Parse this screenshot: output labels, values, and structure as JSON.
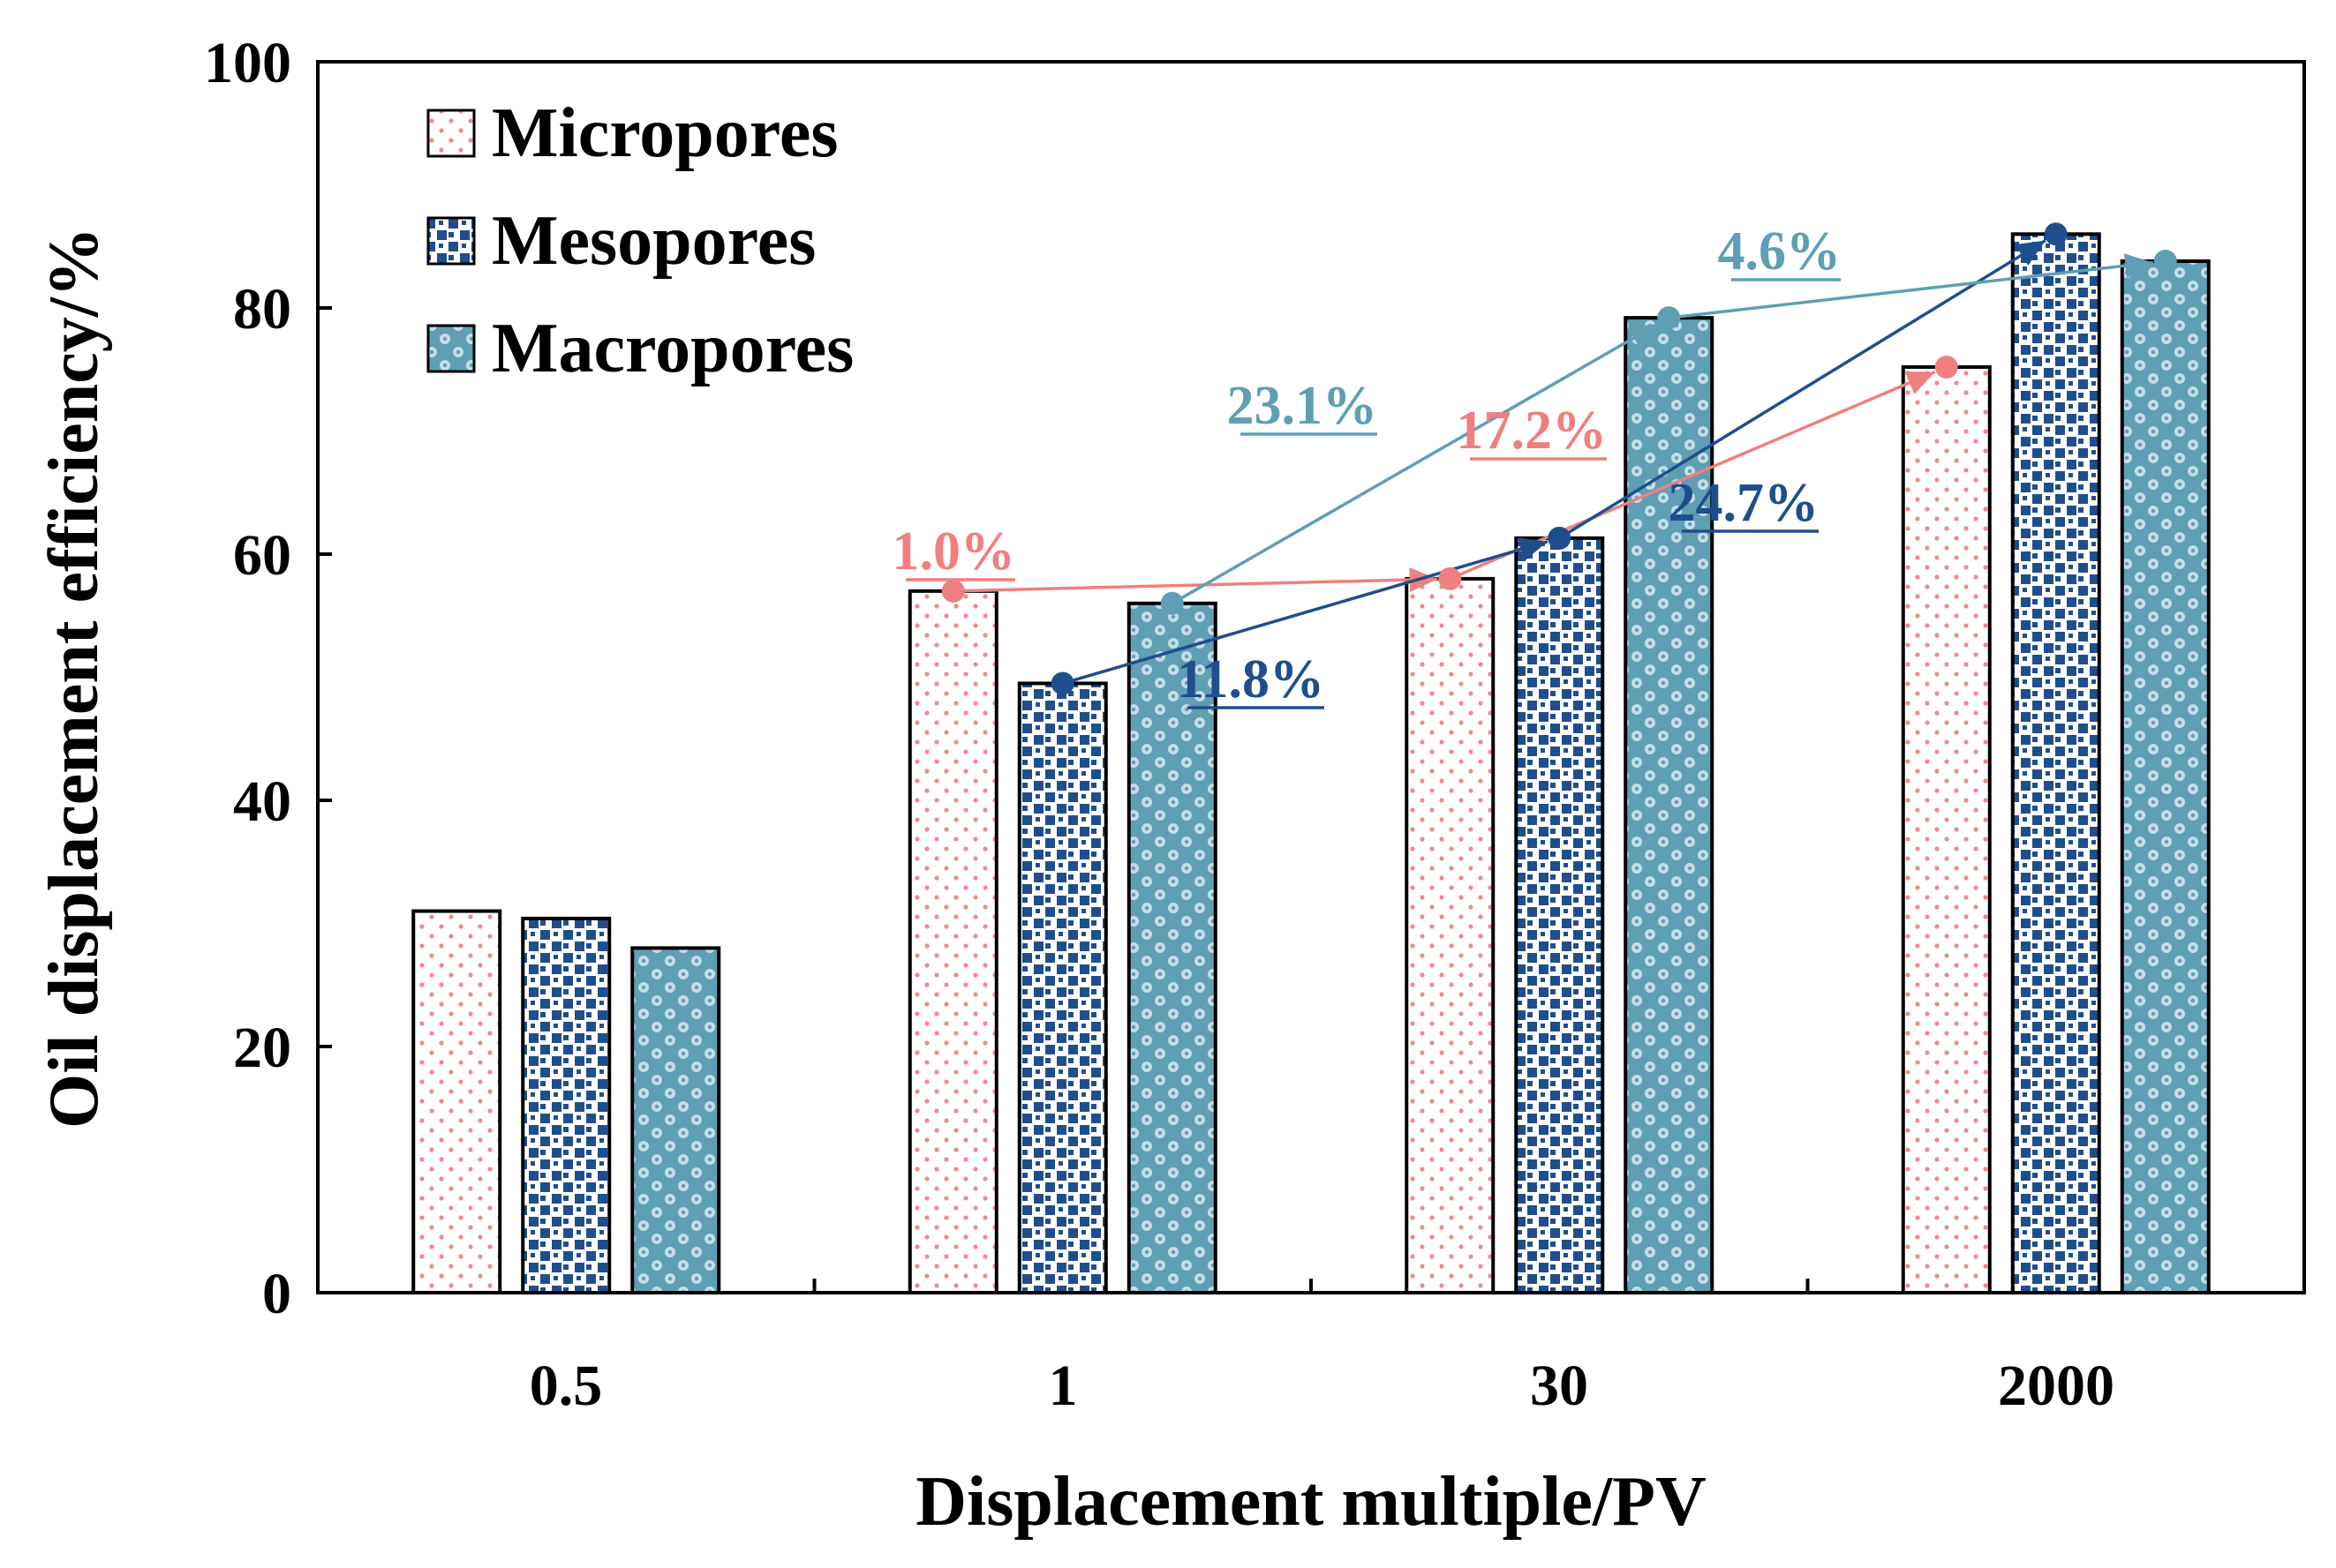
{
  "chart_data": {
    "type": "bar",
    "title": "",
    "xlabel": "Displacement multiple/PV",
    "ylabel": "Oil displacement efficiency/%",
    "ylim": [
      0,
      100
    ],
    "yticks": [
      "0",
      "20",
      "40",
      "60",
      "80",
      "100"
    ],
    "categories": [
      "0.5",
      "1",
      "30",
      "2000"
    ],
    "legend_position": "top-left",
    "series": [
      {
        "name": "Micropores",
        "color": "#f07f7f",
        "values": [
          31.0,
          57.0,
          58.0,
          75.2
        ]
      },
      {
        "name": "Mesopores",
        "color": "#1f4e8c",
        "values": [
          30.4,
          49.5,
          61.3,
          86.0
        ]
      },
      {
        "name": "Macropores",
        "color": "#5e9fb3",
        "values": [
          28.0,
          56.0,
          79.2,
          83.8
        ]
      }
    ],
    "annotations": [
      {
        "series": 0,
        "from": 1,
        "to": 2,
        "label": "1.0%"
      },
      {
        "series": 0,
        "from": 2,
        "to": 3,
        "label": "17.2%"
      },
      {
        "series": 1,
        "from": 1,
        "to": 2,
        "label": "11.8%"
      },
      {
        "series": 1,
        "from": 2,
        "to": 3,
        "label": "24.7%"
      },
      {
        "series": 2,
        "from": 1,
        "to": 2,
        "label": "23.1%"
      },
      {
        "series": 2,
        "from": 2,
        "to": 3,
        "label": "4.6%"
      }
    ]
  }
}
